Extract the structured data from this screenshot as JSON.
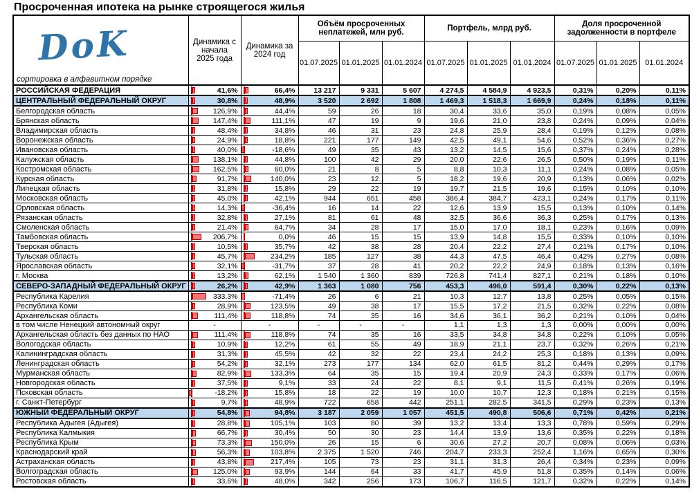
{
  "title": "Просроченная ипотека на рынке строящегося жилья",
  "logo": {
    "text": "DoK"
  },
  "sort_note": "сортировка в алфавитном порядке",
  "header": {
    "dyn2025": "Динамика с начала 2025 года",
    "dyn2024": "Динамика за 2024 год",
    "groups": [
      "Объём просроченных неплатежей, млн руб.",
      "Портфель, млрд руб.",
      "Доля просроченной задолженности в портфеле"
    ],
    "dates": [
      "01.07.2025",
      "01.01.2025",
      "01.01.2024"
    ]
  },
  "colors": {
    "district_row_bg": "#bdd7ee",
    "databar_fill": "#f4777b",
    "databar_border": "#c00000",
    "logo_blue": "#2e74a8"
  },
  "bar_scale_max_percent": 333.3,
  "rows": [
    {
      "name": "РОССИЙСКАЯ ФЕДЕРАЦИЯ",
      "type": "rf",
      "d25": "41,6%",
      "d24": "66,4%",
      "v": [
        "13 217",
        "9 331",
        "5 607"
      ],
      "p": [
        "4 274,5",
        "4 584,9",
        "4 923,5"
      ],
      "s": [
        "0,31%",
        "0,20%",
        "0,11%"
      ]
    },
    {
      "name": "ЦЕНТРАЛЬНЫЙ ФЕДЕРАЛЬНЫЙ ОКРУГ",
      "type": "fo",
      "d25": "30,8%",
      "d24": "48,9%",
      "v": [
        "3 520",
        "2 692",
        "1 808"
      ],
      "p": [
        "1 469,3",
        "1 518,3",
        "1 669,9"
      ],
      "s": [
        "0,24%",
        "0,18%",
        "0,11%"
      ]
    },
    {
      "name": "Белгородская область",
      "type": "reg",
      "d25": "126,9%",
      "d24": "44,4%",
      "v": [
        "59",
        "26",
        "18"
      ],
      "p": [
        "30,4",
        "33,6",
        "35,0"
      ],
      "s": [
        "0,19%",
        "0,08%",
        "0,05%"
      ]
    },
    {
      "name": "Брянская область",
      "type": "reg",
      "d25": "147,4%",
      "d24": "111,1%",
      "v": [
        "47",
        "19",
        "9"
      ],
      "p": [
        "19,6",
        "21,0",
        "23,8"
      ],
      "s": [
        "0,24%",
        "0,09%",
        "0,04%"
      ]
    },
    {
      "name": "Владимирская область",
      "type": "reg",
      "d25": "48,4%",
      "d24": "34,8%",
      "v": [
        "46",
        "31",
        "23"
      ],
      "p": [
        "24,8",
        "25,9",
        "28,4"
      ],
      "s": [
        "0,19%",
        "0,12%",
        "0,08%"
      ]
    },
    {
      "name": "Воронежская область",
      "type": "reg",
      "d25": "24,9%",
      "d24": "18,8%",
      "v": [
        "221",
        "177",
        "149"
      ],
      "p": [
        "42,5",
        "49,1",
        "54,6"
      ],
      "s": [
        "0,52%",
        "0,36%",
        "0,27%"
      ]
    },
    {
      "name": "Ивановская область",
      "type": "reg",
      "d25": "40,0%",
      "d24": "-18,6%",
      "v": [
        "49",
        "35",
        "43"
      ],
      "p": [
        "13,2",
        "14,5",
        "15,6"
      ],
      "s": [
        "0,37%",
        "0,24%",
        "0,28%"
      ]
    },
    {
      "name": "Калужская область",
      "type": "reg",
      "d25": "138,1%",
      "d24": "44,8%",
      "v": [
        "100",
        "42",
        "29"
      ],
      "p": [
        "20,0",
        "22,6",
        "26,5"
      ],
      "s": [
        "0,50%",
        "0,19%",
        "0,11%"
      ]
    },
    {
      "name": "Костромская область",
      "type": "reg",
      "d25": "162,5%",
      "d24": "60,0%",
      "v": [
        "21",
        "8",
        "5"
      ],
      "p": [
        "8,8",
        "10,3",
        "11,1"
      ],
      "s": [
        "0,24%",
        "0,08%",
        "0,05%"
      ]
    },
    {
      "name": "Курская область",
      "type": "reg",
      "d25": "91,7%",
      "d24": "140,0%",
      "v": [
        "23",
        "12",
        "5"
      ],
      "p": [
        "18,2",
        "19,6",
        "20,9"
      ],
      "s": [
        "0,13%",
        "0,06%",
        "0,02%"
      ]
    },
    {
      "name": "Липецкая область",
      "type": "reg",
      "d25": "31,8%",
      "d24": "15,8%",
      "v": [
        "29",
        "22",
        "19"
      ],
      "p": [
        "19,7",
        "21,5",
        "19,6"
      ],
      "s": [
        "0,15%",
        "0,10%",
        "0,10%"
      ]
    },
    {
      "name": "Московская область",
      "type": "reg",
      "d25": "45,0%",
      "d24": "42,1%",
      "v": [
        "944",
        "651",
        "458"
      ],
      "p": [
        "386,4",
        "384,7",
        "423,1"
      ],
      "s": [
        "0,24%",
        "0,17%",
        "0,11%"
      ]
    },
    {
      "name": "Орловская область",
      "type": "reg",
      "d25": "14,3%",
      "d24": "-36,4%",
      "v": [
        "16",
        "14",
        "22"
      ],
      "p": [
        "12,6",
        "13,9",
        "15,5"
      ],
      "s": [
        "0,13%",
        "0,10%",
        "0,14%"
      ]
    },
    {
      "name": "Рязанская область",
      "type": "reg",
      "d25": "32,8%",
      "d24": "27,1%",
      "v": [
        "81",
        "61",
        "48"
      ],
      "p": [
        "32,5",
        "36,6",
        "36,3"
      ],
      "s": [
        "0,25%",
        "0,17%",
        "0,13%"
      ]
    },
    {
      "name": "Смоленская область",
      "type": "reg",
      "d25": "21,4%",
      "d24": "64,7%",
      "v": [
        "34",
        "28",
        "17"
      ],
      "p": [
        "15,0",
        "17,0",
        "18,1"
      ],
      "s": [
        "0,23%",
        "0,16%",
        "0,09%"
      ]
    },
    {
      "name": "Тамбовская область",
      "type": "reg",
      "d25": "206,7%",
      "d24": "0,0%",
      "v": [
        "46",
        "15",
        "15"
      ],
      "p": [
        "13,9",
        "14,8",
        "15,5"
      ],
      "s": [
        "0,33%",
        "0,10%",
        "0,10%"
      ]
    },
    {
      "name": "Тверская область",
      "type": "reg",
      "d25": "10,5%",
      "d24": "35,7%",
      "v": [
        "42",
        "38",
        "28"
      ],
      "p": [
        "20,4",
        "22,2",
        "27,4"
      ],
      "s": [
        "0,21%",
        "0,17%",
        "0,10%"
      ]
    },
    {
      "name": "Тульская область",
      "type": "reg",
      "d25": "45,7%",
      "d24": "234,2%",
      "v": [
        "185",
        "127",
        "38"
      ],
      "p": [
        "44,3",
        "47,5",
        "46,4"
      ],
      "s": [
        "0,42%",
        "0,27%",
        "0,08%"
      ]
    },
    {
      "name": "Ярославская область",
      "type": "reg",
      "d25": "32,1%",
      "d24": "-31,7%",
      "v": [
        "37",
        "28",
        "41"
      ],
      "p": [
        "20,2",
        "22,2",
        "24,9"
      ],
      "s": [
        "0,18%",
        "0,13%",
        "0,16%"
      ]
    },
    {
      "name": "г. Москва",
      "type": "reg",
      "d25": "13,2%",
      "d24": "62,1%",
      "v": [
        "1 540",
        "1 360",
        "839"
      ],
      "p": [
        "726,8",
        "741,4",
        "827,1"
      ],
      "s": [
        "0,21%",
        "0,18%",
        "0,10%"
      ]
    },
    {
      "name": "СЕВЕРО-ЗАПАДНЫЙ ФЕДЕРАЛЬНЫЙ ОКРУГ",
      "type": "fo",
      "d25": "26,2%",
      "d24": "42,9%",
      "v": [
        "1 363",
        "1 080",
        "756"
      ],
      "p": [
        "453,3",
        "496,0",
        "591,4"
      ],
      "s": [
        "0,30%",
        "0,22%",
        "0,13%"
      ]
    },
    {
      "name": "Республика Карелия",
      "type": "reg",
      "d25": "333,3%",
      "d24": "-71,4%",
      "v": [
        "26",
        "6",
        "21"
      ],
      "p": [
        "10,3",
        "12,7",
        "13,8"
      ],
      "s": [
        "0,25%",
        "0,05%",
        "0,15%"
      ]
    },
    {
      "name": "Республика Коми",
      "type": "reg",
      "d25": "28,9%",
      "d24": "123,5%",
      "v": [
        "49",
        "38",
        "17"
      ],
      "p": [
        "15,5",
        "17,2",
        "21,5"
      ],
      "s": [
        "0,32%",
        "0,22%",
        "0,08%"
      ]
    },
    {
      "name": "Архангельская область",
      "type": "reg",
      "d25": "111,4%",
      "d24": "118,8%",
      "v": [
        "74",
        "35",
        "16"
      ],
      "p": [
        "34,6",
        "36,1",
        "36,2"
      ],
      "s": [
        "0,21%",
        "0,10%",
        "0,04%"
      ]
    },
    {
      "name": "в том числе Ненецкий автономный округ",
      "type": "reg",
      "d25": "-",
      "d24": "-",
      "v": [
        "-",
        "-",
        "-"
      ],
      "p": [
        "1,1",
        "1,3",
        "1,3"
      ],
      "s": [
        "0,00%",
        "0,00%",
        "0,00%"
      ]
    },
    {
      "name": "Архангельская область без данных по НАО",
      "type": "reg",
      "d25": "111,4%",
      "d24": "118,8%",
      "v": [
        "74",
        "35",
        "16"
      ],
      "p": [
        "33,5",
        "34,8",
        "34,8"
      ],
      "s": [
        "0,22%",
        "0,10%",
        "0,05%"
      ]
    },
    {
      "name": "Вологодская область",
      "type": "reg",
      "d25": "10,9%",
      "d24": "12,2%",
      "v": [
        "61",
        "55",
        "49"
      ],
      "p": [
        "18,9",
        "21,1",
        "23,7"
      ],
      "s": [
        "0,32%",
        "0,26%",
        "0,21%"
      ]
    },
    {
      "name": "Калининградская область",
      "type": "reg",
      "d25": "31,3%",
      "d24": "45,5%",
      "v": [
        "42",
        "32",
        "22"
      ],
      "p": [
        "23,4",
        "24,2",
        "25,3"
      ],
      "s": [
        "0,18%",
        "0,13%",
        "0,09%"
      ]
    },
    {
      "name": "Ленинградская область",
      "type": "reg",
      "d25": "54,2%",
      "d24": "32,1%",
      "v": [
        "273",
        "177",
        "134"
      ],
      "p": [
        "62,0",
        "61,5",
        "81,2"
      ],
      "s": [
        "0,44%",
        "0,29%",
        "0,17%"
      ]
    },
    {
      "name": "Мурманская область",
      "type": "reg",
      "d25": "82,9%",
      "d24": "133,3%",
      "v": [
        "64",
        "35",
        "15"
      ],
      "p": [
        "19,4",
        "20,9",
        "24,3"
      ],
      "s": [
        "0,33%",
        "0,17%",
        "0,06%"
      ]
    },
    {
      "name": "Новгородская область",
      "type": "reg",
      "d25": "37,5%",
      "d24": "9,1%",
      "v": [
        "33",
        "24",
        "22"
      ],
      "p": [
        "8,1",
        "9,1",
        "11,5"
      ],
      "s": [
        "0,41%",
        "0,26%",
        "0,19%"
      ]
    },
    {
      "name": "Псковская область",
      "type": "reg",
      "d25": "-18,2%",
      "d24": "15,8%",
      "v": [
        "18",
        "22",
        "19"
      ],
      "p": [
        "10,0",
        "10,7",
        "12,3"
      ],
      "s": [
        "0,18%",
        "0,21%",
        "0,15%"
      ]
    },
    {
      "name": "г. Санкт-Петербург",
      "type": "reg",
      "d25": "9,7%",
      "d24": "48,9%",
      "v": [
        "722",
        "658",
        "442"
      ],
      "p": [
        "251,1",
        "282,5",
        "341,5"
      ],
      "s": [
        "0,29%",
        "0,23%",
        "0,13%"
      ]
    },
    {
      "name": "ЮЖНЫЙ ФЕДЕРАЛЬНЫЙ ОКРУГ",
      "type": "fo",
      "d25": "54,8%",
      "d24": "94,8%",
      "v": [
        "3 187",
        "2 059",
        "1 057"
      ],
      "p": [
        "451,5",
        "490,8",
        "506,6"
      ],
      "s": [
        "0,71%",
        "0,42%",
        "0,21%"
      ]
    },
    {
      "name": "Республика Адыгея (Адыгея)",
      "type": "reg",
      "d25": "28,8%",
      "d24": "105,1%",
      "v": [
        "103",
        "80",
        "39"
      ],
      "p": [
        "13,2",
        "13,4",
        "13,3"
      ],
      "s": [
        "0,78%",
        "0,59%",
        "0,29%"
      ]
    },
    {
      "name": "Республика Калмыкия",
      "type": "reg",
      "d25": "66,7%",
      "d24": "30,4%",
      "v": [
        "50",
        "30",
        "23"
      ],
      "p": [
        "14,4",
        "13,9",
        "13,6"
      ],
      "s": [
        "0,35%",
        "0,22%",
        "0,18%"
      ]
    },
    {
      "name": "Республика Крым",
      "type": "reg",
      "d25": "73,3%",
      "d24": "150,0%",
      "v": [
        "26",
        "15",
        "6"
      ],
      "p": [
        "30,6",
        "27,2",
        "20,7"
      ],
      "s": [
        "0,08%",
        "0,06%",
        "0,03%"
      ]
    },
    {
      "name": "Краснодарский край",
      "type": "reg",
      "d25": "56,3%",
      "d24": "103,8%",
      "v": [
        "2 375",
        "1 520",
        "746"
      ],
      "p": [
        "204,7",
        "233,3",
        "252,4"
      ],
      "s": [
        "1,16%",
        "0,65%",
        "0,30%"
      ]
    },
    {
      "name": "Астраханская область",
      "type": "reg",
      "d25": "43,8%",
      "d24": "217,4%",
      "v": [
        "105",
        "73",
        "23"
      ],
      "p": [
        "31,1",
        "31,3",
        "26,4"
      ],
      "s": [
        "0,34%",
        "0,23%",
        "0,09%"
      ]
    },
    {
      "name": "Волгоградская область",
      "type": "reg",
      "d25": "125,0%",
      "d24": "93,9%",
      "v": [
        "144",
        "64",
        "33"
      ],
      "p": [
        "41,7",
        "45,9",
        "51,8"
      ],
      "s": [
        "0,35%",
        "0,14%",
        "0,06%"
      ]
    },
    {
      "name": "Ростовская область",
      "type": "reg",
      "d25": "33,6%",
      "d24": "48,0%",
      "v": [
        "342",
        "256",
        "173"
      ],
      "p": [
        "106,7",
        "116,5",
        "121,7"
      ],
      "s": [
        "0,32%",
        "0,22%",
        "0,14%"
      ]
    }
  ]
}
